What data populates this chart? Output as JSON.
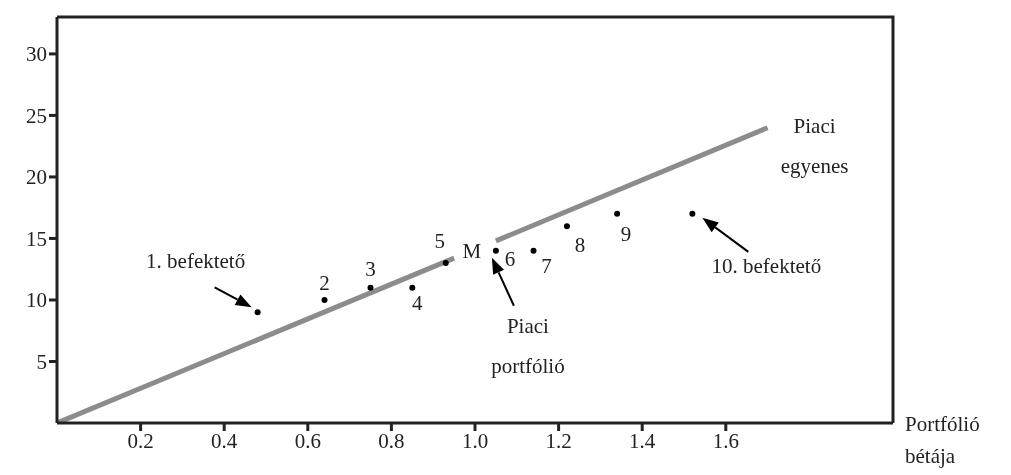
{
  "chart_data": {
    "type": "scatter",
    "xlabel": "Portfólió bétája",
    "xlim": [
      0,
      2.0
    ],
    "xticks": [
      0.2,
      0.4,
      0.6,
      0.8,
      {
        "value": 1.0,
        "label": "1.0"
      },
      1.2,
      1.4,
      1.6
    ],
    "ylim": [
      0,
      33
    ],
    "yticks": [
      5,
      10,
      15,
      20,
      25,
      30
    ],
    "grid": false,
    "series": [
      {
        "type": "line",
        "color": "#8c8c8c",
        "marker": "none",
        "x": [
          0,
          0.95,
          1.0,
          1.05,
          1.7
        ],
        "values": [
          0,
          13.4,
          null,
          14.8,
          24
        ]
      },
      {
        "color": "#000000",
        "marker": "circle",
        "x": [
          0.48,
          0.64,
          0.75,
          0.85,
          0.93,
          1.05,
          1.14,
          1.22,
          1.34,
          1.52
        ],
        "values": [
          9,
          10,
          11,
          11,
          13,
          14,
          14,
          16,
          17,
          17
        ]
      }
    ],
    "annotations": [
      {
        "text": "1. befektető",
        "x": 0.48,
        "y": 9
      },
      {
        "text": "2",
        "x": 0.64,
        "y": 10
      },
      {
        "text": "3",
        "x": 0.75,
        "y": 11
      },
      {
        "text": "4",
        "x": 0.85,
        "y": 11
      },
      {
        "text": "5",
        "x": 0.93,
        "y": 13
      },
      {
        "text": "M",
        "x": 1.05,
        "y": 14
      },
      {
        "text": "6",
        "x": 1.05,
        "y": 14
      },
      {
        "text": "7",
        "x": 1.14,
        "y": 14
      },
      {
        "text": "8",
        "x": 1.22,
        "y": 16
      },
      {
        "text": "9",
        "x": 1.34,
        "y": 17
      },
      {
        "text": "10. befektető",
        "x": 1.52,
        "y": 17
      },
      "Piaci\nportfólió",
      {
        "text": "Piaci\negyenes",
        "x": 1.7,
        "y": 24
      }
    ]
  }
}
